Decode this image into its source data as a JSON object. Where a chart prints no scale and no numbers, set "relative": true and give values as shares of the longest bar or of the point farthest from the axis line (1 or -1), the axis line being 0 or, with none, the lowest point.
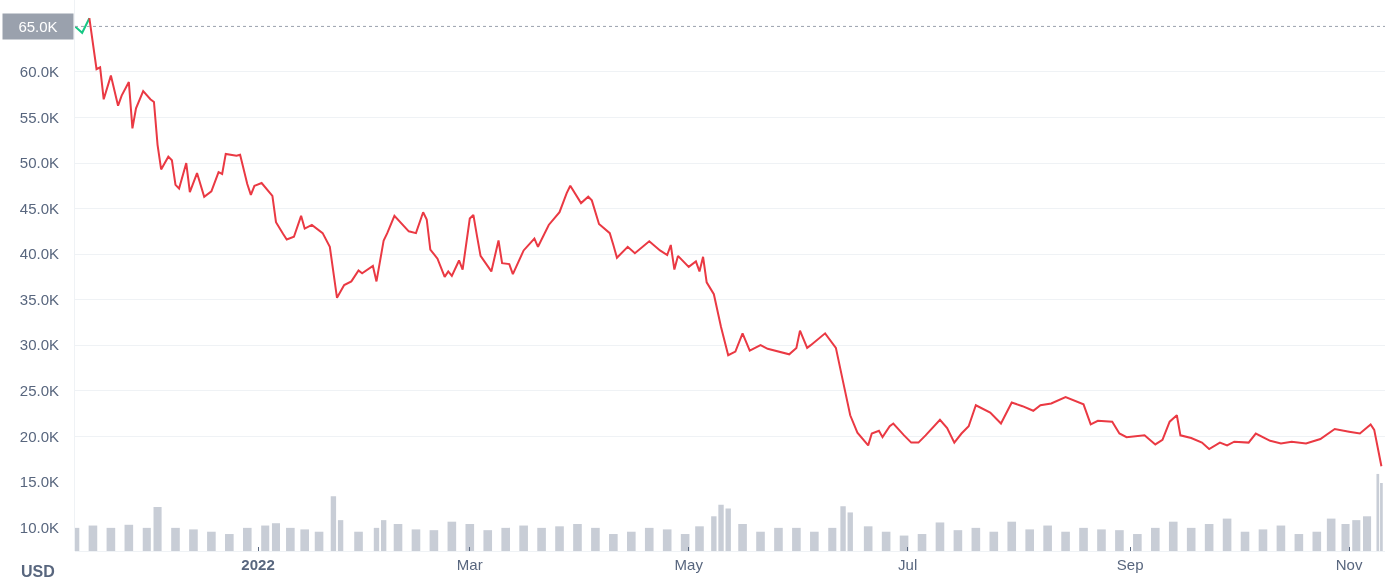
{
  "chart_data": [
    {
      "type": "line",
      "ylabel": "USD",
      "xlim": [
        "2021-11-11",
        "2022-11-11"
      ],
      "ylim": [
        7400,
        67900
      ],
      "tick_labels": "y",
      "grid": "y",
      "marker": "none",
      "line_style": "solid",
      "yticks": [
        {
          "value": 10000,
          "label": "10.0K"
        },
        {
          "value": 15000,
          "label": "15.0K"
        },
        {
          "value": 20000,
          "label": "20.0K"
        },
        {
          "value": 25000,
          "label": "25.0K"
        },
        {
          "value": 30000,
          "label": "30.0K"
        },
        {
          "value": 35000,
          "label": "35.0K"
        },
        {
          "value": 40000,
          "label": "40.0K"
        },
        {
          "value": 45000,
          "label": "45.0K"
        },
        {
          "value": 50000,
          "label": "50.0K"
        },
        {
          "value": 55000,
          "label": "55.0K"
        },
        {
          "value": 60000,
          "label": "60.0K"
        }
      ],
      "ref_lines": [
        {
          "axis": "y",
          "value": 65000,
          "label": "65.0K",
          "color": "#9aa1ad",
          "line_style": "dotted"
        }
      ],
      "series": [
        {
          "type": "line",
          "color": "#16c784",
          "x": [
            "2021-11-11",
            "2021-11-13",
            "2021-11-15"
          ],
          "values": [
            65000,
            64300,
            65900
          ]
        },
        {
          "type": "line",
          "color": "#ea3943",
          "x": [
            "2021-11-15",
            "2021-11-17",
            "2021-11-18",
            "2021-11-19",
            "2021-11-21",
            "2021-11-23",
            "2021-11-24",
            "2021-11-26",
            "2021-11-27",
            "2021-11-28",
            "2021-11-30",
            "2021-12-02",
            "2021-12-03",
            "2021-12-04",
            "2021-12-05",
            "2021-12-07",
            "2021-12-08",
            "2021-12-09",
            "2021-12-10",
            "2021-12-12",
            "2021-12-13",
            "2021-12-15",
            "2021-12-17",
            "2021-12-19",
            "2021-12-21",
            "2021-12-22",
            "2021-12-23",
            "2021-12-26",
            "2021-12-27",
            "2021-12-29",
            "2021-12-30",
            "2021-12-31",
            "2022-01-02",
            "2022-01-05",
            "2022-01-06",
            "2022-01-08",
            "2022-01-09",
            "2022-01-11",
            "2022-01-13",
            "2022-01-14",
            "2022-01-16",
            "2022-01-19",
            "2022-01-21",
            "2022-01-23",
            "2022-01-25",
            "2022-01-27",
            "2022-01-29",
            "2022-01-30",
            "2022-02-02",
            "2022-02-03",
            "2022-02-05",
            "2022-02-06",
            "2022-02-08",
            "2022-02-12",
            "2022-02-14",
            "2022-02-16",
            "2022-02-17",
            "2022-02-18",
            "2022-02-20",
            "2022-02-22",
            "2022-02-23",
            "2022-02-24",
            "2022-02-26",
            "2022-02-27",
            "2022-03-01",
            "2022-03-02",
            "2022-03-03",
            "2022-03-04",
            "2022-03-07",
            "2022-03-09",
            "2022-03-10",
            "2022-03-12",
            "2022-03-13",
            "2022-03-16",
            "2022-03-19",
            "2022-03-20",
            "2022-03-23",
            "2022-03-26",
            "2022-03-28",
            "2022-03-29",
            "2022-04-01",
            "2022-04-03",
            "2022-04-04",
            "2022-04-06",
            "2022-04-09",
            "2022-04-10",
            "2022-04-11",
            "2022-04-14",
            "2022-04-16",
            "2022-04-20",
            "2022-04-23",
            "2022-04-25",
            "2022-04-26",
            "2022-04-27",
            "2022-04-28",
            "2022-05-01",
            "2022-05-03",
            "2022-05-04",
            "2022-05-05",
            "2022-05-06",
            "2022-05-08",
            "2022-05-10",
            "2022-05-12",
            "2022-05-14",
            "2022-05-16",
            "2022-05-18",
            "2022-05-21",
            "2022-05-23",
            "2022-05-29",
            "2022-05-31",
            "2022-06-01",
            "2022-06-03",
            "2022-06-04",
            "2022-06-08",
            "2022-06-11",
            "2022-06-13",
            "2022-06-15",
            "2022-06-17",
            "2022-06-20",
            "2022-06-21",
            "2022-06-23",
            "2022-06-24",
            "2022-06-26",
            "2022-06-27",
            "2022-06-30",
            "2022-07-02",
            "2022-07-04",
            "2022-07-06",
            "2022-07-10",
            "2022-07-12",
            "2022-07-14",
            "2022-07-16",
            "2022-07-18",
            "2022-07-20",
            "2022-07-24",
            "2022-07-27",
            "2022-07-30",
            "2022-08-02",
            "2022-08-05",
            "2022-08-07",
            "2022-08-10",
            "2022-08-14",
            "2022-08-19",
            "2022-08-21",
            "2022-08-23",
            "2022-08-27",
            "2022-08-29",
            "2022-08-31",
            "2022-09-05",
            "2022-09-08",
            "2022-09-10",
            "2022-09-12",
            "2022-09-14",
            "2022-09-15",
            "2022-09-18",
            "2022-09-21",
            "2022-09-23",
            "2022-09-26",
            "2022-09-28",
            "2022-09-30",
            "2022-10-04",
            "2022-10-06",
            "2022-10-10",
            "2022-10-13",
            "2022-10-16",
            "2022-10-20",
            "2022-10-24",
            "2022-10-28",
            "2022-11-01",
            "2022-11-04",
            "2022-11-07",
            "2022-11-08",
            "2022-11-10"
          ],
          "values": [
            65900,
            60300,
            60500,
            57000,
            59600,
            56300,
            57400,
            58900,
            53800,
            56000,
            57900,
            57000,
            56700,
            52000,
            49300,
            50700,
            50300,
            47600,
            47200,
            50000,
            46800,
            48900,
            46300,
            46900,
            49000,
            48800,
            51000,
            50800,
            50900,
            47700,
            46500,
            47500,
            47800,
            46400,
            43500,
            42200,
            41600,
            41900,
            44200,
            42800,
            43200,
            42300,
            40800,
            35200,
            36600,
            37000,
            38200,
            37900,
            38700,
            37000,
            41500,
            42300,
            44200,
            42500,
            42300,
            44600,
            43800,
            40500,
            39500,
            37500,
            38100,
            37600,
            39300,
            38300,
            43900,
            44300,
            42000,
            39800,
            38100,
            41500,
            39000,
            38900,
            37800,
            40400,
            41700,
            40800,
            43200,
            44600,
            46700,
            47500,
            45600,
            46300,
            45900,
            43300,
            42300,
            41000,
            39600,
            40800,
            40100,
            41400,
            40400,
            39900,
            41000,
            38300,
            39800,
            38600,
            39200,
            38100,
            39700,
            36900,
            35600,
            32000,
            28900,
            29300,
            31300,
            29400,
            30000,
            29600,
            29000,
            29700,
            31600,
            29700,
            30000,
            31300,
            29700,
            26000,
            22300,
            20400,
            19000,
            20300,
            20600,
            19900,
            21100,
            21400,
            20100,
            19300,
            19300,
            20100,
            21800,
            20900,
            19300,
            20300,
            21100,
            23400,
            22600,
            21400,
            23700,
            23300,
            22800,
            23400,
            23600,
            24300,
            23500,
            21300,
            21700,
            21600,
            20300,
            19900,
            20100,
            19100,
            19600,
            21600,
            22300,
            20100,
            19800,
            19300,
            18600,
            19300,
            19000,
            19400,
            19300,
            20300,
            19500,
            19200,
            19400,
            19200,
            19700,
            20800,
            20500,
            20300,
            21300,
            20700,
            16700
          ]
        }
      ]
    },
    {
      "type": "bar",
      "relative": true,
      "color": "#c8cdd6",
      "tick_labels": "x",
      "xlim": [
        "2021-11-11",
        "2022-11-11"
      ],
      "xticks": [
        {
          "value": "2022-01-01",
          "label": "2022"
        },
        {
          "value": "2022-03-01",
          "label": "Mar"
        },
        {
          "value": "2022-05-01",
          "label": "May"
        },
        {
          "value": "2022-07-01",
          "label": "Jul"
        },
        {
          "value": "2022-09-01",
          "label": "Sep"
        },
        {
          "value": "2022-11-01",
          "label": "Nov"
        }
      ],
      "x": [
        "2021-11-11",
        "2021-11-16",
        "2021-11-21",
        "2021-11-26",
        "2021-12-01",
        "2021-12-04",
        "2021-12-09",
        "2021-12-14",
        "2021-12-19",
        "2021-12-24",
        "2021-12-29",
        "2022-01-03",
        "2022-01-06",
        "2022-01-10",
        "2022-01-14",
        "2022-01-18",
        "2022-01-22",
        "2022-01-24",
        "2022-01-29",
        "2022-02-03",
        "2022-02-05",
        "2022-02-09",
        "2022-02-14",
        "2022-02-19",
        "2022-02-24",
        "2022-03-01",
        "2022-03-06",
        "2022-03-11",
        "2022-03-16",
        "2022-03-21",
        "2022-03-26",
        "2022-03-31",
        "2022-04-05",
        "2022-04-10",
        "2022-04-15",
        "2022-04-20",
        "2022-04-25",
        "2022-04-30",
        "2022-05-04",
        "2022-05-08",
        "2022-05-10",
        "2022-05-12",
        "2022-05-16",
        "2022-05-21",
        "2022-05-26",
        "2022-05-31",
        "2022-06-05",
        "2022-06-10",
        "2022-06-13",
        "2022-06-15",
        "2022-06-20",
        "2022-06-25",
        "2022-06-30",
        "2022-07-05",
        "2022-07-10",
        "2022-07-15",
        "2022-07-20",
        "2022-07-25",
        "2022-07-30",
        "2022-08-04",
        "2022-08-09",
        "2022-08-14",
        "2022-08-19",
        "2022-08-24",
        "2022-08-29",
        "2022-09-03",
        "2022-09-08",
        "2022-09-13",
        "2022-09-18",
        "2022-09-23",
        "2022-09-28",
        "2022-10-03",
        "2022-10-08",
        "2022-10-13",
        "2022-10-18",
        "2022-10-23",
        "2022-10-27",
        "2022-10-31",
        "2022-11-03",
        "2022-11-06",
        "2022-11-09",
        "2022-11-10"
      ],
      "values": [
        0.3,
        0.33,
        0.3,
        0.34,
        0.3,
        0.57,
        0.3,
        0.28,
        0.25,
        0.22,
        0.3,
        0.33,
        0.36,
        0.3,
        0.28,
        0.25,
        0.71,
        0.4,
        0.25,
        0.3,
        0.4,
        0.35,
        0.28,
        0.27,
        0.38,
        0.35,
        0.27,
        0.3,
        0.33,
        0.3,
        0.32,
        0.35,
        0.3,
        0.22,
        0.25,
        0.3,
        0.28,
        0.22,
        0.32,
        0.45,
        0.6,
        0.55,
        0.35,
        0.25,
        0.3,
        0.3,
        0.25,
        0.3,
        0.58,
        0.5,
        0.32,
        0.25,
        0.2,
        0.22,
        0.37,
        0.27,
        0.3,
        0.25,
        0.38,
        0.28,
        0.33,
        0.25,
        0.3,
        0.28,
        0.27,
        0.22,
        0.3,
        0.38,
        0.3,
        0.35,
        0.42,
        0.25,
        0.28,
        0.33,
        0.22,
        0.25,
        0.42,
        0.35,
        0.4,
        0.45,
        1.0,
        0.88
      ]
    }
  ]
}
